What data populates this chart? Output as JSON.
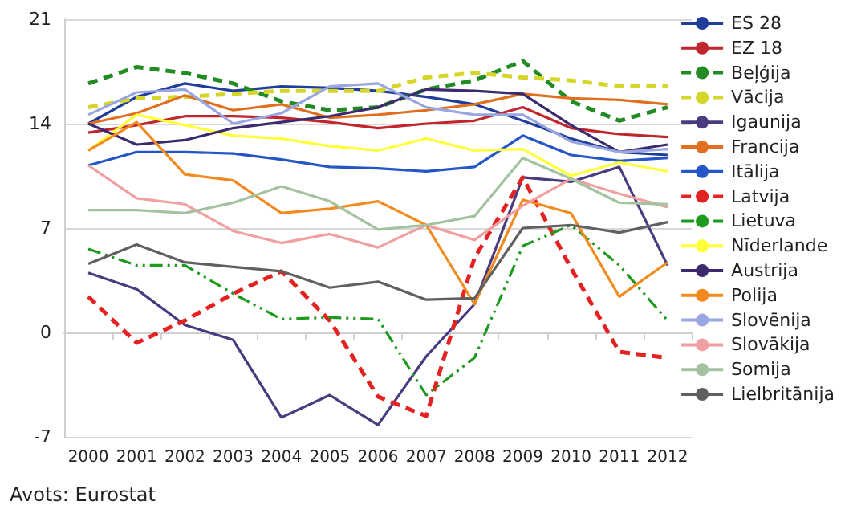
{
  "chart_data": {
    "type": "line",
    "categories": [
      "2000",
      "2001",
      "2002",
      "2003",
      "2004",
      "2005",
      "2006",
      "2007",
      "2008",
      "2009",
      "2010",
      "2011",
      "2012"
    ],
    "ylim": [
      -7,
      21
    ],
    "yticks": [
      -7,
      0,
      7,
      14,
      21
    ],
    "grid": "y",
    "legend": "right",
    "marker": "none",
    "annotations": [
      "Avots: Eurostat"
    ],
    "series": [
      {
        "name": "ES 28",
        "color": "#1f3d99",
        "line_style": "solid",
        "values": [
          14.0,
          15.8,
          16.7,
          16.2,
          16.5,
          16.4,
          16.2,
          15.8,
          15.3,
          14.2,
          13.0,
          12.1,
          11.9
        ]
      },
      {
        "name": "EZ 18",
        "color": "#c0262d",
        "line_style": "solid",
        "values": [
          13.4,
          13.9,
          14.5,
          14.5,
          14.4,
          14.1,
          13.7,
          14.0,
          14.2,
          15.1,
          13.7,
          13.3,
          13.1
        ]
      },
      {
        "name": "Beļģija",
        "color": "#238b23",
        "line_style": "dashed",
        "values": [
          16.7,
          17.8,
          17.4,
          16.7,
          15.5,
          14.9,
          15.1,
          16.3,
          16.9,
          18.2,
          15.5,
          14.2,
          15.1
        ]
      },
      {
        "name": "Vācija",
        "color": "#d6d62a",
        "line_style": "dashed",
        "values": [
          15.1,
          15.7,
          15.8,
          16.0,
          16.2,
          16.2,
          16.2,
          17.1,
          17.4,
          17.1,
          16.9,
          16.5,
          16.5
        ]
      },
      {
        "name": "Igaunija",
        "color": "#4a3b80",
        "line_style": "solid",
        "values": [
          4.0,
          2.9,
          0.5,
          -0.5,
          -5.7,
          -4.2,
          -6.2,
          -1.6,
          1.9,
          10.4,
          10.1,
          11.1,
          4.5
        ]
      },
      {
        "name": "Francija",
        "color": "#e07020",
        "line_style": "solid",
        "values": [
          14.0,
          14.7,
          15.9,
          14.9,
          15.3,
          14.4,
          14.6,
          14.9,
          15.3,
          16.0,
          15.7,
          15.6,
          15.3
        ]
      },
      {
        "name": "Itālija",
        "color": "#2456c8",
        "line_style": "solid",
        "values": [
          11.2,
          12.1,
          12.1,
          12.0,
          11.6,
          11.1,
          11.0,
          10.8,
          11.1,
          13.2,
          11.9,
          11.5,
          11.7
        ]
      },
      {
        "name": "Latvija",
        "color": "#e52222",
        "line_style": "dashed",
        "values": [
          2.4,
          -0.7,
          0.8,
          2.6,
          4.1,
          0.8,
          -4.3,
          -5.6,
          5.0,
          10.4,
          4.3,
          -1.3,
          -1.7
        ]
      },
      {
        "name": "Lietuva",
        "color": "#1e9a1e",
        "line_style": "dashdot",
        "values": [
          5.6,
          4.5,
          4.5,
          2.6,
          0.9,
          1.0,
          0.9,
          -4.2,
          -1.7,
          5.8,
          7.2,
          4.5,
          0.8
        ]
      },
      {
        "name": "Nīderlande",
        "color": "#ffff3a",
        "line_style": "solid",
        "values": [
          12.2,
          14.6,
          13.9,
          13.2,
          13.0,
          12.5,
          12.2,
          13.0,
          12.2,
          12.3,
          10.5,
          11.4,
          10.8
        ]
      },
      {
        "name": "Austrija",
        "color": "#3c2a6e",
        "line_style": "solid",
        "values": [
          14.0,
          12.6,
          12.9,
          13.7,
          14.1,
          14.5,
          15.1,
          16.3,
          16.2,
          16.0,
          13.9,
          12.1,
          12.6
        ]
      },
      {
        "name": "Polija",
        "color": "#f28a1e",
        "line_style": "solid",
        "values": [
          12.2,
          14.1,
          10.6,
          10.2,
          8.0,
          8.3,
          8.8,
          7.2,
          1.9,
          8.9,
          8.0,
          2.4,
          4.7
        ]
      },
      {
        "name": "Slovēnija",
        "color": "#9aa6e0",
        "line_style": "solid",
        "values": [
          14.6,
          16.1,
          16.3,
          14.0,
          14.7,
          16.5,
          16.7,
          15.1,
          14.6,
          14.6,
          12.8,
          12.1,
          12.3
        ]
      },
      {
        "name": "Slovākija",
        "color": "#f0a0a0",
        "line_style": "solid",
        "values": [
          11.2,
          9.0,
          8.6,
          6.8,
          6.0,
          6.6,
          5.7,
          7.2,
          6.2,
          8.5,
          10.3,
          9.3,
          8.4
        ]
      },
      {
        "name": "Somija",
        "color": "#a2c2a0",
        "line_style": "solid",
        "values": [
          8.2,
          8.2,
          8.0,
          8.7,
          9.8,
          8.8,
          6.9,
          7.2,
          7.8,
          11.7,
          10.3,
          8.7,
          8.6
        ]
      },
      {
        "name": "Lielbritānija",
        "color": "#606060",
        "line_style": "solid",
        "values": [
          4.6,
          5.9,
          4.7,
          4.4,
          4.1,
          3.0,
          3.4,
          2.2,
          2.3,
          7.0,
          7.2,
          6.7,
          7.4
        ]
      }
    ]
  }
}
